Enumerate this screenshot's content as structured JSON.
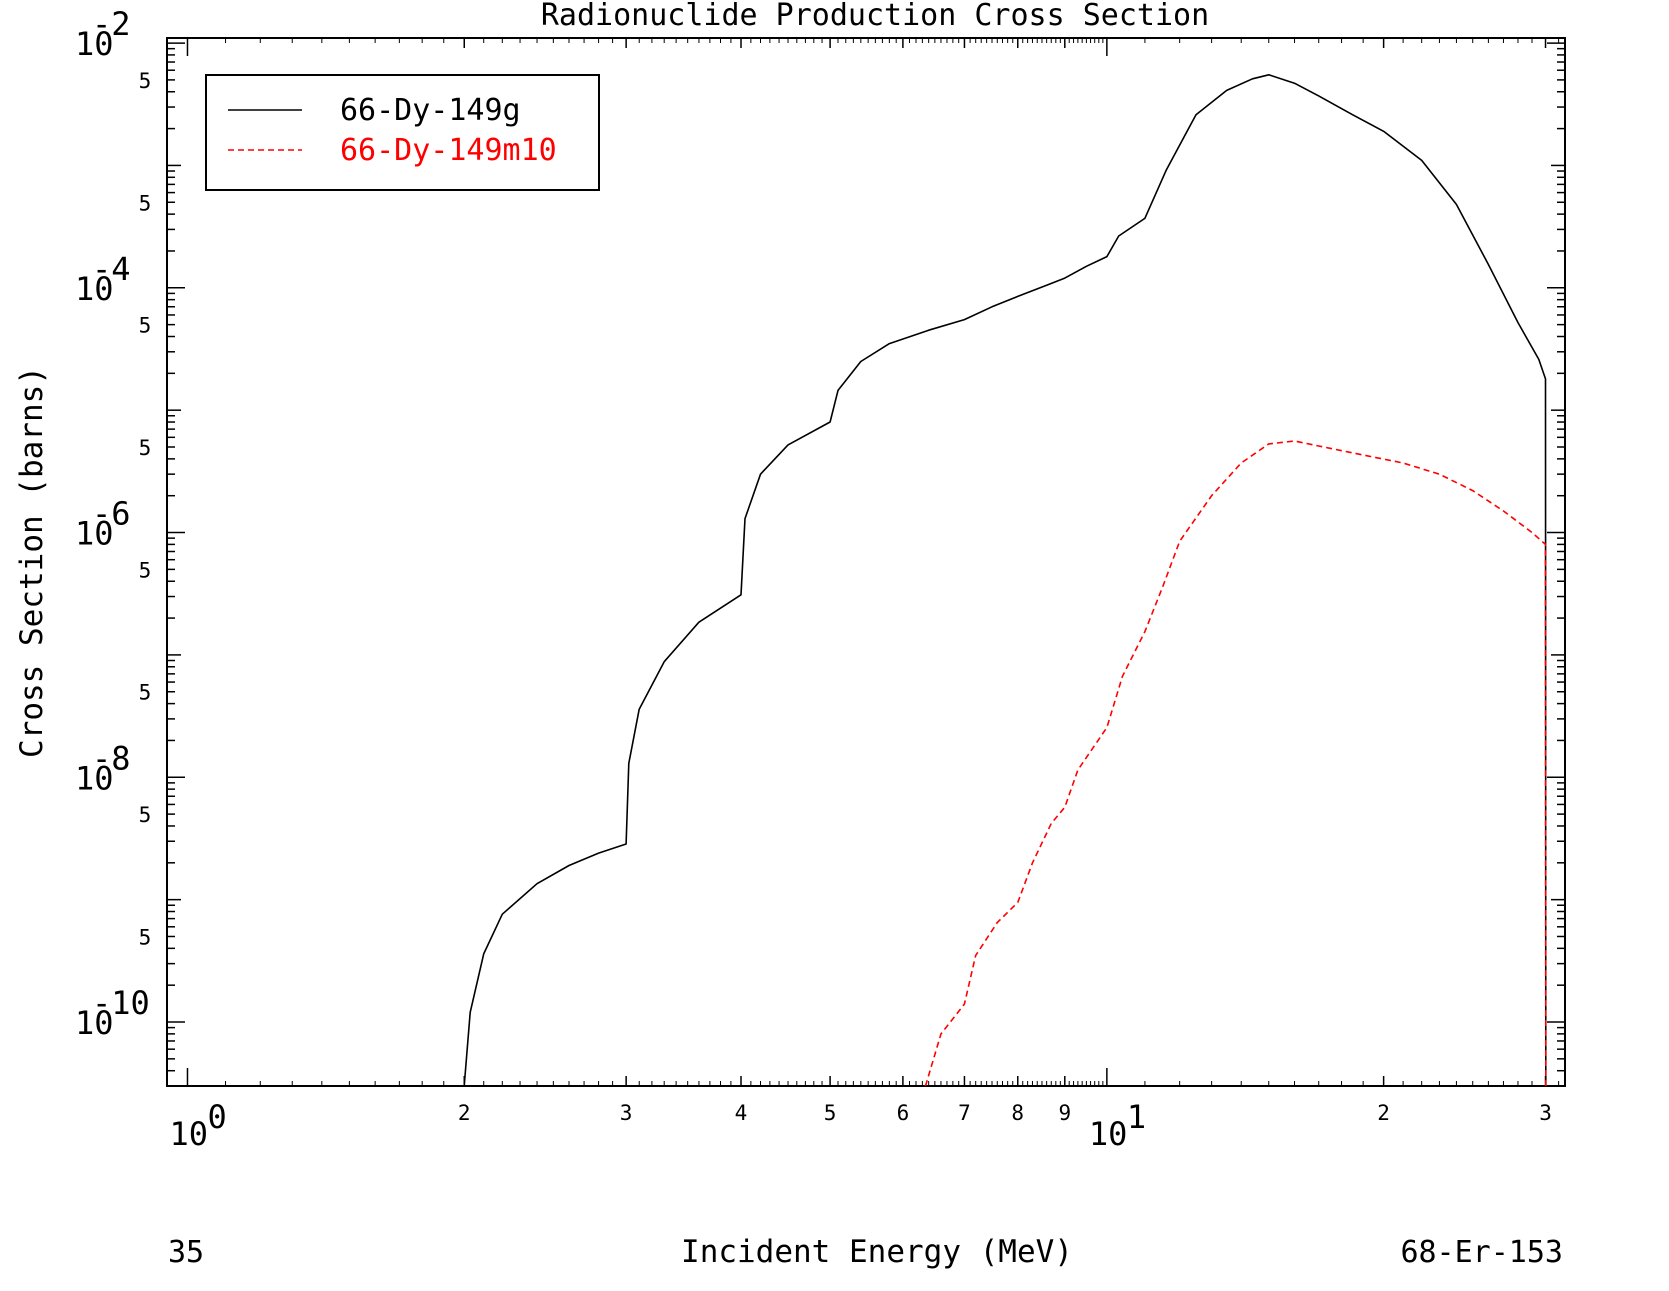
{
  "chart_data": {
    "type": "line",
    "title": "Radionuclide Production Cross Section",
    "xlabel": "Incident Energy (MeV)",
    "ylabel": "Cross Section (barns)",
    "x_scale": "log",
    "y_scale": "log",
    "xlim": [
      0.95,
      31.5
    ],
    "ylim": [
      3e-11,
      0.011
    ],
    "x_major_ticks": [
      {
        "value": 1,
        "base": "10",
        "exp": "0"
      },
      {
        "value": 10,
        "base": "10",
        "exp": "1"
      }
    ],
    "x_minor_ticks": [
      {
        "value": 2,
        "label": "2"
      },
      {
        "value": 3,
        "label": "3"
      },
      {
        "value": 4,
        "label": "4"
      },
      {
        "value": 5,
        "label": "5"
      },
      {
        "value": 6,
        "label": "6"
      },
      {
        "value": 7,
        "label": "7"
      },
      {
        "value": 8,
        "label": "8"
      },
      {
        "value": 9,
        "label": "9"
      },
      {
        "value": 20,
        "label": "2"
      },
      {
        "value": 30,
        "label": "3"
      }
    ],
    "y_major_ticks": [
      {
        "value": 0.01,
        "base": "10",
        "exp": "-2"
      },
      {
        "value": 0.0001,
        "base": "10",
        "exp": "-4"
      },
      {
        "value": 1e-06,
        "base": "10",
        "exp": "-6"
      },
      {
        "value": 1e-08,
        "base": "10",
        "exp": "-8"
      },
      {
        "value": 1e-10,
        "base": "10",
        "exp": "-10"
      }
    ],
    "y_minor_labels": [
      {
        "value": 0.005,
        "label": "5"
      },
      {
        "value": 0.0005,
        "label": "5"
      },
      {
        "value": 5e-05,
        "label": "5"
      },
      {
        "value": 5e-06,
        "label": "5"
      },
      {
        "value": 5e-07,
        "label": "5"
      },
      {
        "value": 5e-08,
        "label": "5"
      },
      {
        "value": 5e-09,
        "label": "5"
      },
      {
        "value": 5e-10,
        "label": "5"
      }
    ],
    "grid": false,
    "legend_position": "top-left",
    "series": [
      {
        "name": "66-Dy-149g",
        "color": "#000000",
        "dash": "solid",
        "points": [
          [
            2.0,
            3e-11
          ],
          [
            2.03,
            1.2e-10
          ],
          [
            2.1,
            3.6e-10
          ],
          [
            2.2,
            7.6e-10
          ],
          [
            2.4,
            1.35e-09
          ],
          [
            2.6,
            1.9e-09
          ],
          [
            2.8,
            2.4e-09
          ],
          [
            3.0,
            2.85e-09
          ],
          [
            3.02,
            1.3e-08
          ],
          [
            3.1,
            3.6e-08
          ],
          [
            3.3,
            8.8e-08
          ],
          [
            3.6,
            1.85e-07
          ],
          [
            4.0,
            3.1e-07
          ],
          [
            4.04,
            1.3e-06
          ],
          [
            4.2,
            3e-06
          ],
          [
            4.5,
            5.2e-06
          ],
          [
            5.0,
            8e-06
          ],
          [
            5.1,
            1.45e-05
          ],
          [
            5.4,
            2.5e-05
          ],
          [
            5.8,
            3.5e-05
          ],
          [
            6.4,
            4.5e-05
          ],
          [
            7.0,
            5.5e-05
          ],
          [
            7.5,
            7e-05
          ],
          [
            8.0,
            8.5e-05
          ],
          [
            8.6,
            0.000105
          ],
          [
            9.0,
            0.00012
          ],
          [
            9.5,
            0.00015
          ],
          [
            10.0,
            0.00018
          ],
          [
            10.3,
            0.000265
          ],
          [
            11.0,
            0.00037
          ],
          [
            11.6,
            0.00091
          ],
          [
            12.5,
            0.0026
          ],
          [
            13.5,
            0.0041
          ],
          [
            14.4,
            0.0051
          ],
          [
            15.0,
            0.0055
          ],
          [
            16.0,
            0.0047
          ],
          [
            17.0,
            0.0037
          ],
          [
            18.5,
            0.0026
          ],
          [
            20.0,
            0.0019
          ],
          [
            22.0,
            0.0011
          ],
          [
            24.0,
            0.00048
          ],
          [
            26.0,
            0.000155
          ],
          [
            28.0,
            5.2e-05
          ],
          [
            29.5,
            2.6e-05
          ],
          [
            30.0,
            1.8e-05
          ],
          [
            30.02,
            3e-11
          ]
        ]
      },
      {
        "name": "66-Dy-149m10",
        "color": "#ff0000",
        "dash": "dashed",
        "points": [
          [
            6.35,
            3e-11
          ],
          [
            6.6,
            8e-11
          ],
          [
            7.0,
            1.4e-10
          ],
          [
            7.2,
            3.5e-10
          ],
          [
            7.6,
            6.5e-10
          ],
          [
            8.0,
            9.5e-10
          ],
          [
            8.3,
            2e-09
          ],
          [
            8.7,
            4.2e-09
          ],
          [
            9.0,
            5.7e-09
          ],
          [
            9.3,
            1.15e-08
          ],
          [
            10.0,
            2.55e-08
          ],
          [
            10.4,
            6.7e-08
          ],
          [
            11.0,
            1.55e-07
          ],
          [
            11.5,
            3.6e-07
          ],
          [
            12.0,
            8.5e-07
          ],
          [
            13.0,
            2e-06
          ],
          [
            14.0,
            3.7e-06
          ],
          [
            15.0,
            5.3e-06
          ],
          [
            16.0,
            5.6e-06
          ],
          [
            17.0,
            5.1e-06
          ],
          [
            19.0,
            4.3e-06
          ],
          [
            21.0,
            3.7e-06
          ],
          [
            23.0,
            3e-06
          ],
          [
            25.0,
            2.2e-06
          ],
          [
            27.0,
            1.5e-06
          ],
          [
            29.0,
            1e-06
          ],
          [
            30.0,
            8e-07
          ],
          [
            30.02,
            3e-11
          ]
        ]
      }
    ]
  },
  "footer": {
    "left": "35",
    "right": "68-Er-153"
  }
}
